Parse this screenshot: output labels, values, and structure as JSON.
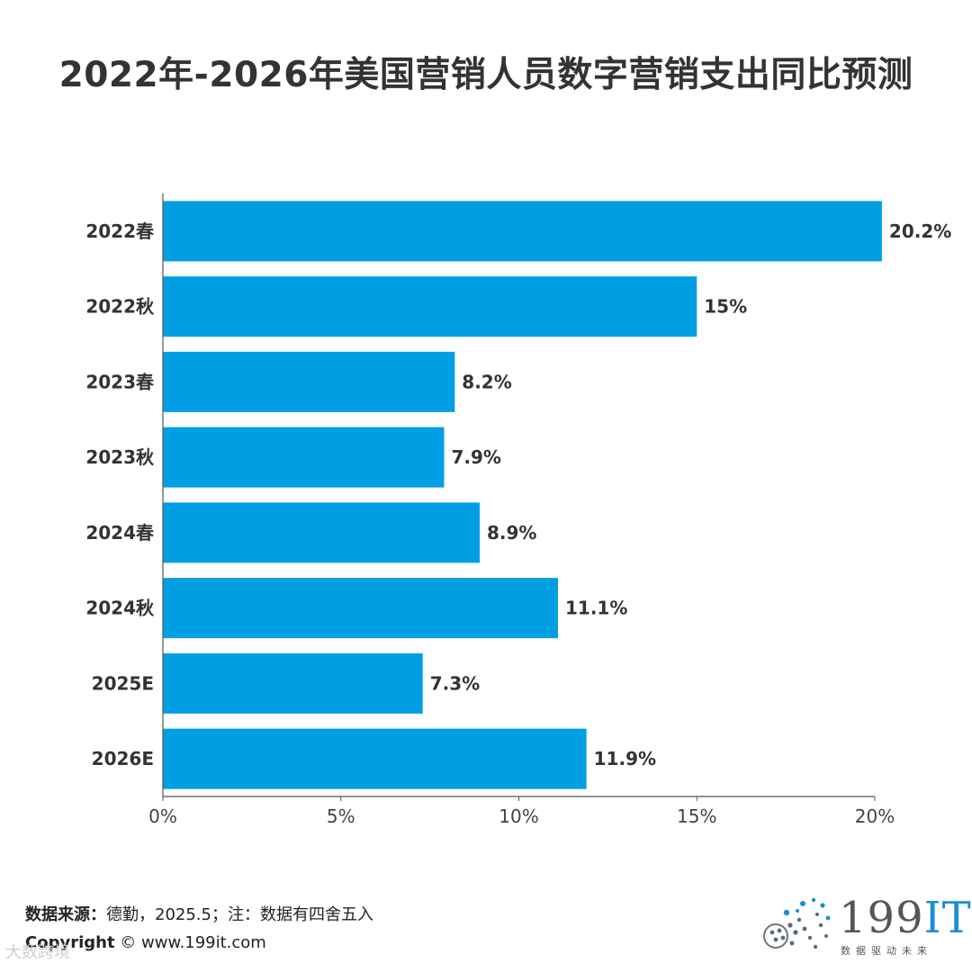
{
  "title": "2022年-2026年美国营销人员数字营销支出同比预测",
  "chart_data": {
    "type": "bar",
    "orientation": "horizontal",
    "categories": [
      "2022春",
      "2022秋",
      "2023春",
      "2023秋",
      "2024春",
      "2024秋",
      "2025E",
      "2026E"
    ],
    "values": [
      20.2,
      15,
      8.2,
      7.9,
      8.9,
      11.1,
      7.3,
      11.9
    ],
    "value_labels": [
      "20.2%",
      "15%",
      "8.2%",
      "7.9%",
      "8.9%",
      "11.1%",
      "7.3%",
      "11.9%"
    ],
    "xlim": [
      0,
      20
    ],
    "xticks": [
      0,
      5,
      10,
      15,
      20
    ],
    "xtick_labels": [
      "0%",
      "5%",
      "10%",
      "15%",
      "20%"
    ],
    "bar_color": "#009fe3",
    "grid": false
  },
  "footer": {
    "source_label": "数据来源：",
    "source_text": "德勤，2025.5；注：数据有四舍五入",
    "copyright_label": "Copyright",
    "copyright_text": "©  www.199it.com",
    "watermark": "大数跨境"
  },
  "logo": {
    "number": "199",
    "it": "IT",
    "tagline": "数据驱动未来"
  }
}
